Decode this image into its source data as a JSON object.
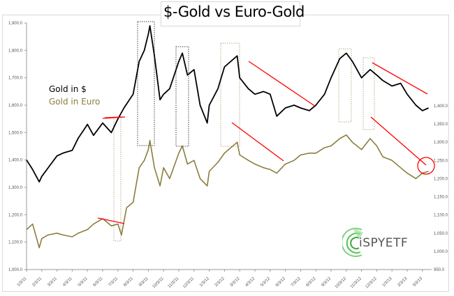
{
  "chart_data": {
    "type": "line",
    "title": "$-Gold vs Euro-Gold",
    "xlabel": "",
    "ylabel_left": "",
    "ylabel_right": "",
    "legend_position": "upper-left inside plot",
    "grid": false,
    "x_ticks": [
      "1/3/11",
      "2/3/11",
      "3/3/11",
      "4/3/11",
      "5/3/11",
      "6/3/11",
      "7/3/11",
      "8/3/11",
      "9/3/11",
      "10/3/11",
      "11/3/11",
      "12/3/11",
      "1/3/12",
      "2/3/12",
      "3/3/12",
      "4/3/12",
      "5/3/12",
      "6/3/12",
      "7/3/12",
      "8/3/12",
      "9/3/12",
      "10/3/12",
      "11/3/12",
      "12/3/12",
      "1/3/13",
      "2/3/13",
      "3/3/13"
    ],
    "left_axis": {
      "ticks": [
        "1,000.0",
        "1,100.0",
        "1,200.0",
        "1,300.0",
        "1,400.0",
        "1,500.0",
        "1,600.0",
        "1,700.0",
        "1,800.0",
        "1,900.0"
      ],
      "ylim": [
        1000,
        1900
      ]
    },
    "right_axis": {
      "ticks": [
        "950.0",
        "1,000.0",
        "1,050.0",
        "1,100.0",
        "1,150.0",
        "1,200.0",
        "1,250.0",
        "1,300.0",
        "1,350.0",
        "1,400.0"
      ],
      "ylim": [
        950,
        1400
      ]
    },
    "series": [
      {
        "name": "Gold in $",
        "axis": "left",
        "color": "#000000",
        "x": [
          "1/3/11",
          "1/15/11",
          "1/28/11",
          "2/3/11",
          "2/15/11",
          "3/3/11",
          "3/15/11",
          "4/3/11",
          "4/15/11",
          "5/3/11",
          "5/15/11",
          "6/3/11",
          "6/20/11",
          "7/3/11",
          "7/15/11",
          "8/3/11",
          "8/15/11",
          "8/25/11",
          "9/3/11",
          "9/6/11",
          "9/15/11",
          "9/26/11",
          "10/3/11",
          "10/15/11",
          "11/3/11",
          "11/10/11",
          "11/20/11",
          "12/3/11",
          "12/15/11",
          "12/29/11",
          "1/3/12",
          "1/20/12",
          "2/3/12",
          "2/28/12",
          "3/3/12",
          "3/20/12",
          "4/3/12",
          "4/20/12",
          "5/3/12",
          "5/16/12",
          "6/3/12",
          "6/20/12",
          "7/3/12",
          "7/20/12",
          "8/3/12",
          "8/20/12",
          "9/3/12",
          "9/20/12",
          "10/3/12",
          "10/15/12",
          "11/3/12",
          "11/20/12",
          "12/3/12",
          "12/15/12",
          "1/3/13",
          "1/20/13",
          "2/3/13",
          "2/20/13",
          "3/3/13",
          "3/15/13"
        ],
        "values": [
          1400,
          1365,
          1320,
          1340,
          1370,
          1415,
          1425,
          1435,
          1480,
          1530,
          1490,
          1535,
          1500,
          1550,
          1590,
          1640,
          1760,
          1800,
          1860,
          1890,
          1780,
          1620,
          1640,
          1660,
          1760,
          1790,
          1710,
          1730,
          1600,
          1535,
          1600,
          1660,
          1740,
          1780,
          1700,
          1660,
          1640,
          1650,
          1640,
          1560,
          1590,
          1600,
          1590,
          1580,
          1600,
          1640,
          1700,
          1770,
          1790,
          1760,
          1700,
          1730,
          1710,
          1690,
          1670,
          1680,
          1640,
          1600,
          1580,
          1590
        ]
      },
      {
        "name": "Gold in Euro",
        "axis": "right",
        "color": "#8a7d3f",
        "x": [
          "1/3/11",
          "1/15/11",
          "1/28/11",
          "2/3/11",
          "2/15/11",
          "3/3/11",
          "3/15/11",
          "4/3/11",
          "4/15/11",
          "5/3/11",
          "5/15/11",
          "6/3/11",
          "6/20/11",
          "7/3/11",
          "7/10/11",
          "7/20/11",
          "8/3/11",
          "8/15/11",
          "8/25/11",
          "9/3/11",
          "9/6/11",
          "9/15/11",
          "9/26/11",
          "10/3/11",
          "10/15/11",
          "11/3/11",
          "11/10/11",
          "11/20/11",
          "12/3/11",
          "12/15/11",
          "12/29/11",
          "1/3/12",
          "1/20/12",
          "2/3/12",
          "2/28/12",
          "3/3/12",
          "3/20/12",
          "4/3/12",
          "4/20/12",
          "5/3/12",
          "5/16/12",
          "6/3/12",
          "6/20/12",
          "7/3/12",
          "7/20/12",
          "8/3/12",
          "8/20/12",
          "9/3/12",
          "9/20/12",
          "10/3/12",
          "10/15/12",
          "11/3/12",
          "11/20/12",
          "12/3/12",
          "12/15/12",
          "1/3/13",
          "1/20/13",
          "2/3/13",
          "2/20/13",
          "3/3/13",
          "3/15/13"
        ],
        "values": [
          1060,
          1075,
          1010,
          1035,
          1045,
          1050,
          1045,
          1040,
          1050,
          1060,
          1075,
          1090,
          1070,
          1075,
          1045,
          1120,
          1135,
          1230,
          1250,
          1280,
          1305,
          1230,
          1180,
          1230,
          1200,
          1270,
          1290,
          1240,
          1250,
          1200,
          1180,
          1220,
          1245,
          1270,
          1300,
          1265,
          1250,
          1240,
          1230,
          1225,
          1215,
          1240,
          1250,
          1265,
          1270,
          1270,
          1285,
          1290,
          1310,
          1320,
          1300,
          1280,
          1310,
          1290,
          1260,
          1250,
          1230,
          1215,
          1200,
          1215,
          1220
        ]
      }
    ],
    "annotations": [
      {
        "type": "dotted-box",
        "color": "#444444",
        "label": "Aug-Sep 2011 $ peak"
      },
      {
        "type": "dotted-box",
        "color": "#444444",
        "label": "Nov 2011 $ peak"
      },
      {
        "type": "dotted-box",
        "color": "#b5ad8a",
        "label": "Jul 2011 dip"
      },
      {
        "type": "dotted-box",
        "color": "#b5ad8a",
        "label": "Feb 2012 peak"
      },
      {
        "type": "dotted-box",
        "color": "#b5ad8a",
        "label": "Oct 2012 peak"
      },
      {
        "type": "dotted-box",
        "color": "#b5ad8a",
        "label": "Nov-Dec 2012 peak"
      },
      {
        "type": "trendline",
        "color": "#ff0000",
        "label": "descending resistance lines"
      },
      {
        "type": "circle",
        "color": "#ff0000",
        "label": "Euro-gold breakout Mar 2013"
      }
    ]
  },
  "header": {
    "title": "$-Gold vs Euro-Gold"
  },
  "legend": {
    "series1": "Gold in $",
    "series2": "Gold in Euro"
  },
  "logo": {
    "text": "iSPYETF"
  },
  "colors": {
    "usd": "#000000",
    "euro": "#8a7d3f",
    "trend": "#ff0000",
    "logo_green": "#5cc05c"
  }
}
